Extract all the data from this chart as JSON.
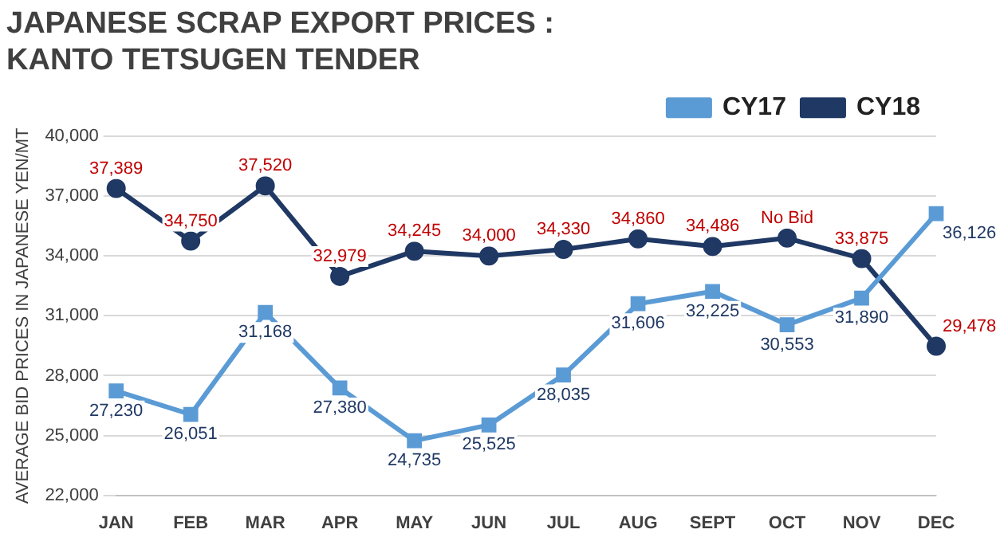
{
  "chart_data": {
    "type": "line",
    "title": "JAPANESE SCRAP EXPORT PRICES :\nKANTO TETSUGEN TENDER",
    "ylabel": "AVERAGE BID PRICES IN JAPANESE YEN/MT",
    "categories": [
      "JAN",
      "FEB",
      "MAR",
      "APR",
      "MAY",
      "JUN",
      "JUL",
      "AUG",
      "SEPT",
      "OCT",
      "NOV",
      "DEC"
    ],
    "series": [
      {
        "name": "CY17",
        "color": "#5b9bd5",
        "marker": "square",
        "values": [
          27230,
          26051,
          31168,
          27380,
          24735,
          25525,
          28035,
          31606,
          32225,
          30553,
          31890,
          36126
        ],
        "value_labels": [
          "27,230",
          "26,051",
          "31,168",
          "27,380",
          "24,735",
          "25,525",
          "28,035",
          "31,606",
          "32,225",
          "30,553",
          "31,890",
          "36,126"
        ]
      },
      {
        "name": "CY18",
        "color": "#1f3864",
        "marker": "circle",
        "values": [
          37389,
          34750,
          37520,
          32979,
          34245,
          34000,
          34330,
          34860,
          34486,
          34900,
          33875,
          29478
        ],
        "value_labels": [
          "37,389",
          "34,750",
          "37,520",
          "32,979",
          "34,245",
          "34,000",
          "34,330",
          "34,860",
          "34,486",
          "No Bid",
          "33,875",
          "29,478"
        ]
      }
    ],
    "ylim": [
      22000,
      40000
    ],
    "yticks": [
      {
        "value": 22000,
        "label": "22,000"
      },
      {
        "value": 25000,
        "label": "25,000"
      },
      {
        "value": 28000,
        "label": "28,000"
      },
      {
        "value": 31000,
        "label": "31,000"
      },
      {
        "value": 34000,
        "label": "34,000"
      },
      {
        "value": 37000,
        "label": "37,000"
      },
      {
        "value": 40000,
        "label": "40,000"
      }
    ],
    "grid": "y",
    "legend": "top right",
    "line_style": "solid"
  }
}
